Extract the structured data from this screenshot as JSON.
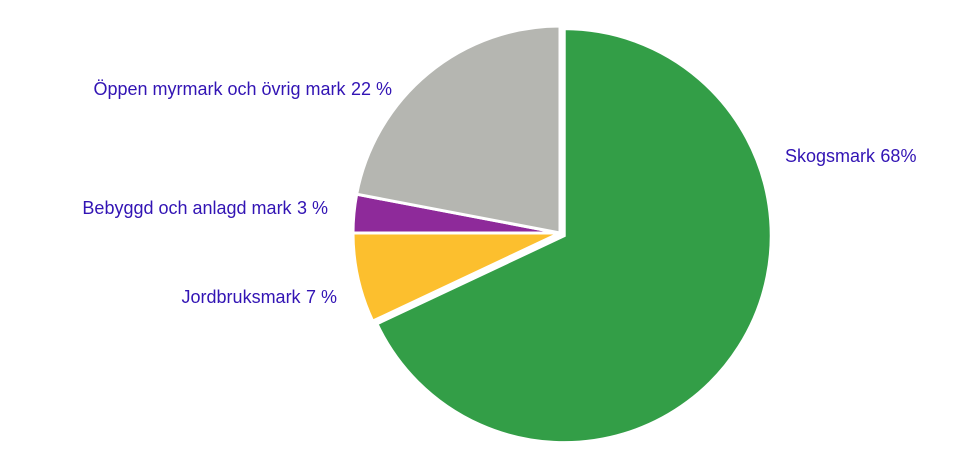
{
  "chart_data": {
    "type": "pie",
    "categories": [
      "Skogsmark",
      "Jordbruksmark",
      "Bebyggd och anlagd mark",
      "Öppen myrmark och övrig mark"
    ],
    "values": [
      68,
      7,
      3,
      22
    ],
    "value_labels": [
      "68%",
      "7 %",
      "3 %",
      "22 %"
    ],
    "colors": [
      "#339e47",
      "#fcbf2e",
      "#8e2a9a",
      "#b5b6b1"
    ]
  }
}
